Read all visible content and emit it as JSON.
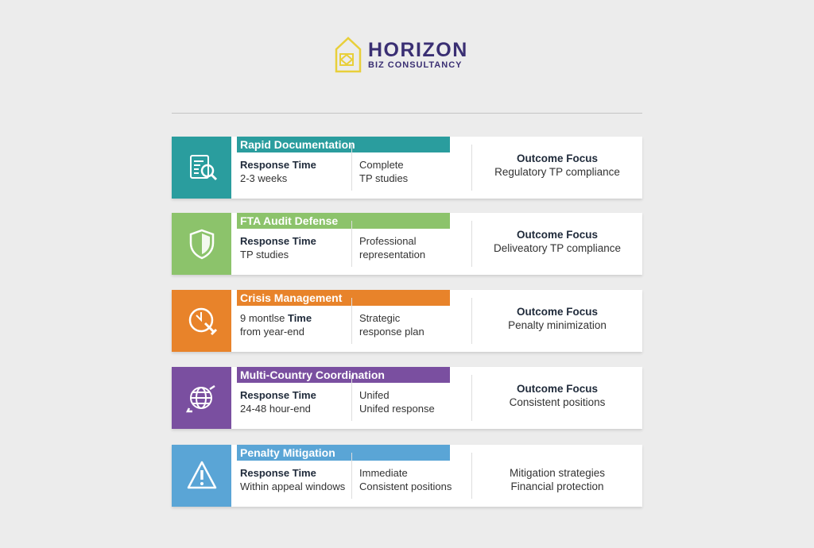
{
  "header": {
    "brand_name": "HORIZON",
    "brand_sub": "BIZ CONSULTANCY",
    "logo_color": "#e8cf3a",
    "brand_color": "#3a2f73"
  },
  "services": [
    {
      "title": "Rapid Documentation",
      "color": "#2a9d9e",
      "icon": "document-search-icon",
      "col1": {
        "prefix": "",
        "bold": "Response Time",
        "line2": "2-3 weeks"
      },
      "col2": {
        "line1": "Complete",
        "line2": "TP studies"
      },
      "col3": {
        "heading": "Outcome Focus",
        "line1": "Regulatory TP compliance",
        "line2": ""
      }
    },
    {
      "title": "FTA Audit Defense",
      "color": "#8cc36b",
      "icon": "shield-icon",
      "col1": {
        "prefix": "",
        "bold": "Response Time",
        "line2": "TP studies"
      },
      "col2": {
        "line1": "Professional",
        "line2": "representation"
      },
      "col3": {
        "heading": "Outcome Focus",
        "line1": "Deliveatory TP compliance",
        "line2": ""
      }
    },
    {
      "title": "Crisis Management",
      "color": "#e8832a",
      "icon": "clock-wrench-icon",
      "col1": {
        "prefix": "9 montlse ",
        "bold": "Time",
        "line2": "from year-end"
      },
      "col2": {
        "line1": "Strategic",
        "line2": "response plan"
      },
      "col3": {
        "heading": "Outcome Focus",
        "line1": "Penalty minimization",
        "line2": ""
      }
    },
    {
      "title": "Multi-Country Coordination",
      "color": "#7a4fa0",
      "icon": "globe-arrows-icon",
      "col1": {
        "prefix": "",
        "bold": "Response Time",
        "line2": "24-48 hour-end"
      },
      "col2": {
        "line1": "Unifed",
        "line2": "Unifed response"
      },
      "col3": {
        "heading": "Outcome Focus",
        "line1": "Consistent positions",
        "line2": ""
      }
    },
    {
      "title": "Penalty Mitigation",
      "color": "#5aa5d6",
      "icon": "warning-icon",
      "col1": {
        "prefix": "",
        "bold": "Response Time",
        "line2": "Within appeal windows"
      },
      "col2": {
        "line1": "Immediate",
        "line2": "Consistent positions"
      },
      "col3": {
        "heading": "",
        "line1": "Mitigation strategies",
        "line2": "Financial protection"
      }
    }
  ]
}
